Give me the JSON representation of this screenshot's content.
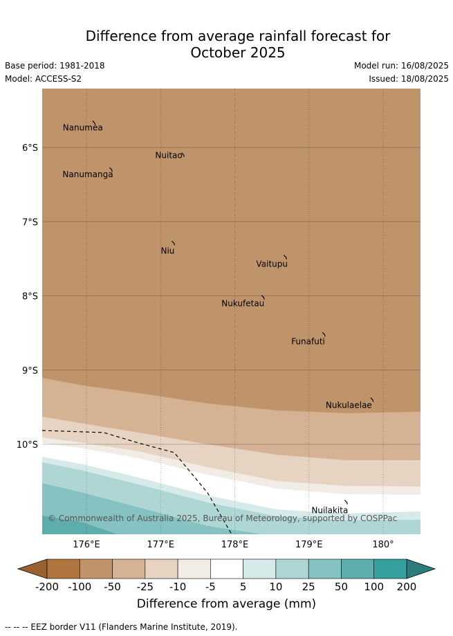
{
  "header": {
    "title_line1": "Difference from average rainfall forecast for",
    "title_line2": "October 2025",
    "base_period": "Base period: 1981-2018",
    "model": "Model: ACCESS-S2",
    "model_run": "Model run: 16/08/2025",
    "issued": "Issued: 18/08/2025"
  },
  "map": {
    "lon_ticks": [
      {
        "label": "176°E",
        "value": 176
      },
      {
        "label": "177°E",
        "value": 177
      },
      {
        "label": "178°E",
        "value": 178
      },
      {
        "label": "179°E",
        "value": 179
      },
      {
        "label": "180°",
        "value": 180
      }
    ],
    "lat_ticks": [
      {
        "label": "6°S",
        "value": -6
      },
      {
        "label": "7°S",
        "value": -7
      },
      {
        "label": "8°S",
        "value": -8
      },
      {
        "label": "9°S",
        "value": -9
      },
      {
        "label": "10°S",
        "value": -10
      }
    ],
    "places": [
      {
        "name": "Nanumea",
        "lon": 176.1,
        "lat": -5.67
      },
      {
        "name": "Nuitao",
        "lon": 177.3,
        "lat": -6.1
      },
      {
        "name": "Nanumanga",
        "lon": 176.33,
        "lat": -6.3
      },
      {
        "name": "Niu",
        "lon": 177.17,
        "lat": -7.29
      },
      {
        "name": "Vaitupu",
        "lon": 178.68,
        "lat": -7.48
      },
      {
        "name": "Nukufetau",
        "lon": 178.38,
        "lat": -8.02
      },
      {
        "name": "Funafuti",
        "lon": 179.2,
        "lat": -8.52
      },
      {
        "name": "Nukulaelae",
        "lon": 179.85,
        "lat": -9.4
      },
      {
        "name": "Nuilakita",
        "lon": 179.5,
        "lat": -10.78
      }
    ],
    "copyright": "© Commonwealth of Australia 2025, Bureau of Meteorology, supported by COSPPac",
    "colors": {
      "dry_-100_-50": "#c0946a",
      "dry_-50_-25": "#d4b293",
      "dry_-25_-10": "#e6d3c2",
      "near_-10_-5": "#f2ece6",
      "near_-5_5": "#ffffff",
      "wet_5_10": "#d6eae9",
      "wet_10_25": "#aed6d5",
      "wet_25_50": "#86c2c1",
      "wet_50_100": "#5dadac"
    }
  },
  "colorbar": {
    "levels": [
      "-200",
      "-100",
      "-50",
      "-25",
      "-10",
      "-5",
      "5",
      "10",
      "25",
      "50",
      "100",
      "200"
    ],
    "colors": [
      "#ae753e",
      "#c0946a",
      "#d4b293",
      "#e6d3c2",
      "#f2ece6",
      "#ffffff",
      "#d6eae9",
      "#aed6d5",
      "#86c2c1",
      "#5dadac",
      "#35a09e"
    ],
    "low_extend_color": "#9a6230",
    "high_extend_color": "#2b7c7d",
    "title": "Difference from average (mm)"
  },
  "footnote": "--  --  -- EEZ border V11 (Flanders Marine Institute, 2019)."
}
